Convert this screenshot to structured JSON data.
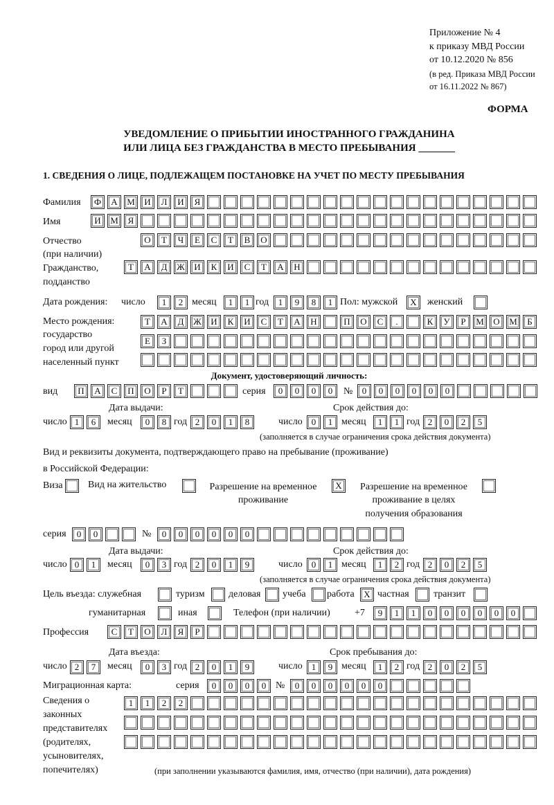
{
  "header": {
    "appendix": "Приложение № 4",
    "order": "к приказу МВД России",
    "order_date": "от 10.12.2020 № 856",
    "edition": "(в ред. Приказа МВД России",
    "edition_date": "от 16.11.2022 № 867)",
    "form": "ФОРМА",
    "title_line1": "УВЕДОМЛЕНИЕ О ПРИБЫТИИ ИНОСТРАННОГО ГРАЖДАНИНА",
    "title_line2": "ИЛИ ЛИЦА БЕЗ ГРАЖДАНСТВА В МЕСТО ПРЕБЫВАНИЯ _______",
    "section1": "1. СВЕДЕНИЯ О ЛИЦЕ, ПОДЛЕЖАЩЕМ ПОСТАНОВКЕ НА УЧЕТ ПО МЕСТУ ПРЕБЫВАНИЯ"
  },
  "labels": {
    "surname": "Фамилия",
    "name": "Имя",
    "patronymic": "Отчество",
    "patronymic_note": "(при наличии)",
    "citizenship1": "Гражданство,",
    "citizenship2": "подданство",
    "birth_date": "Дата рождения:",
    "day": "число",
    "month": "месяц",
    "year": "год",
    "sex": "Пол: мужской",
    "female": "женский",
    "birthplace1": "Место рождения:",
    "birthplace2": "государство",
    "birthplace3": "город или другой",
    "birthplace4": "населенный пункт",
    "id_doc": "Документ, удостоверяющий личность:",
    "kind": "вид",
    "series": "серия",
    "number": "№",
    "issue_date": "Дата выдачи:",
    "valid_until": "Срок действия до:",
    "validity_note": "(заполняется в случае ограничения срока действия документа)",
    "right_doc1": "Вид и реквизиты документа, подтверждающего право на пребывание (проживание)",
    "right_doc2": "в Российской Федерации:",
    "visa": "Виза",
    "residence": "Вид на жительство",
    "trp1": "Разрешение на временное",
    "trp2": "проживание",
    "trp_edu1": "Разрешение на временное",
    "trp_edu2": "проживание в целях",
    "trp_edu3": "получения образования",
    "purpose": "Цель въезда: служебная",
    "tourism": "туризм",
    "business": "деловая",
    "study": "учеба",
    "work": "работа",
    "private": "частная",
    "transit": "транзит",
    "humanitarian": "гуманитарная",
    "other": "иная",
    "phone": "Телефон (при наличии)",
    "phone_prefix": "+7",
    "profession": "Профессия",
    "entry_date": "Дата въезда:",
    "stay_until": "Срок пребывания до:",
    "migration_card": "Миграционная карта:",
    "legal1": "Сведения о",
    "legal2": "законных",
    "legal3": "представителях",
    "legal4": "(родителях,",
    "legal5": "усыновителях,",
    "legal6": "попечителях)",
    "legal_note": "(при заполнении указываются фамилия, имя, отчество (при наличии), дата рождения)"
  },
  "fields": {
    "surname": [
      "Ф",
      "А",
      "М",
      "И",
      "Л",
      "И",
      "Я"
    ],
    "name": [
      "И",
      "М",
      "Я"
    ],
    "patronymic": [
      "О",
      "Т",
      "Ч",
      "Е",
      "С",
      "Т",
      "В",
      "О"
    ],
    "citizenship": [
      "Т",
      "А",
      "Д",
      "Ж",
      "И",
      "К",
      "И",
      "С",
      "Т",
      "А",
      "Н"
    ],
    "birth_day": [
      "1",
      "2"
    ],
    "birth_month": [
      "1",
      "1"
    ],
    "birth_year": [
      "1",
      "9",
      "8",
      "1"
    ],
    "sex_male": [
      "X"
    ],
    "sex_female": [],
    "birthplace1": [
      "Т",
      "А",
      "Д",
      "Ж",
      "И",
      "К",
      "И",
      "С",
      "Т",
      "А",
      "Н",
      "",
      "П",
      "О",
      "С",
      ".",
      "",
      "К",
      "У",
      "Р",
      "М",
      "О",
      "М",
      "Б"
    ],
    "birthplace2": [
      "Е",
      "З"
    ],
    "birthplace3": [],
    "id_kind": [
      "П",
      "А",
      "С",
      "П",
      "О",
      "Р",
      "Т"
    ],
    "id_series": [
      "0",
      "0",
      "0",
      "0"
    ],
    "id_number": [
      "0",
      "0",
      "0",
      "0",
      "0",
      "0"
    ],
    "id_issue_day": [
      "1",
      "6"
    ],
    "id_issue_month": [
      "0",
      "8"
    ],
    "id_issue_year": [
      "2",
      "0",
      "1",
      "8"
    ],
    "id_valid_day": [
      "0",
      "1"
    ],
    "id_valid_month": [
      "1",
      "1"
    ],
    "id_valid_year": [
      "2",
      "0",
      "2",
      "5"
    ],
    "visa": [],
    "residence": [],
    "trp": [
      "X"
    ],
    "trp_edu": [],
    "rd_series": [
      "0",
      "0"
    ],
    "rd_number": [
      "0",
      "0",
      "0",
      "0",
      "0",
      "0"
    ],
    "rd_issue_day": [
      "0",
      "1"
    ],
    "rd_issue_month": [
      "0",
      "3"
    ],
    "rd_issue_year": [
      "2",
      "0",
      "1",
      "9"
    ],
    "rd_valid_day": [
      "0",
      "1"
    ],
    "rd_valid_month": [
      "1",
      "2"
    ],
    "rd_valid_year": [
      "2",
      "0",
      "2",
      "5"
    ],
    "p_official": [],
    "p_tourism": [],
    "p_business": [],
    "p_study": [],
    "p_work": [
      "X"
    ],
    "p_private": [],
    "p_transit": [],
    "p_humanitarian": [],
    "p_other": [],
    "phone": [
      "9",
      "1",
      "1",
      "0",
      "0",
      "0",
      "0",
      "0",
      "0"
    ],
    "profession": [
      "С",
      "Т",
      "О",
      "Л",
      "Я",
      "Р"
    ],
    "entry_day": [
      "2",
      "7"
    ],
    "entry_month": [
      "0",
      "3"
    ],
    "entry_year": [
      "2",
      "0",
      "1",
      "9"
    ],
    "stay_day": [
      "1",
      "9"
    ],
    "stay_month": [
      "1",
      "2"
    ],
    "stay_year": [
      "2",
      "0",
      "2",
      "5"
    ],
    "mc_series": [
      "0",
      "0",
      "0",
      "0"
    ],
    "mc_number": [
      "0",
      "0",
      "0",
      "0",
      "0",
      "0"
    ],
    "legal1": [
      "1",
      "1",
      "2",
      "2"
    ],
    "legal2": [],
    "legal3": []
  }
}
